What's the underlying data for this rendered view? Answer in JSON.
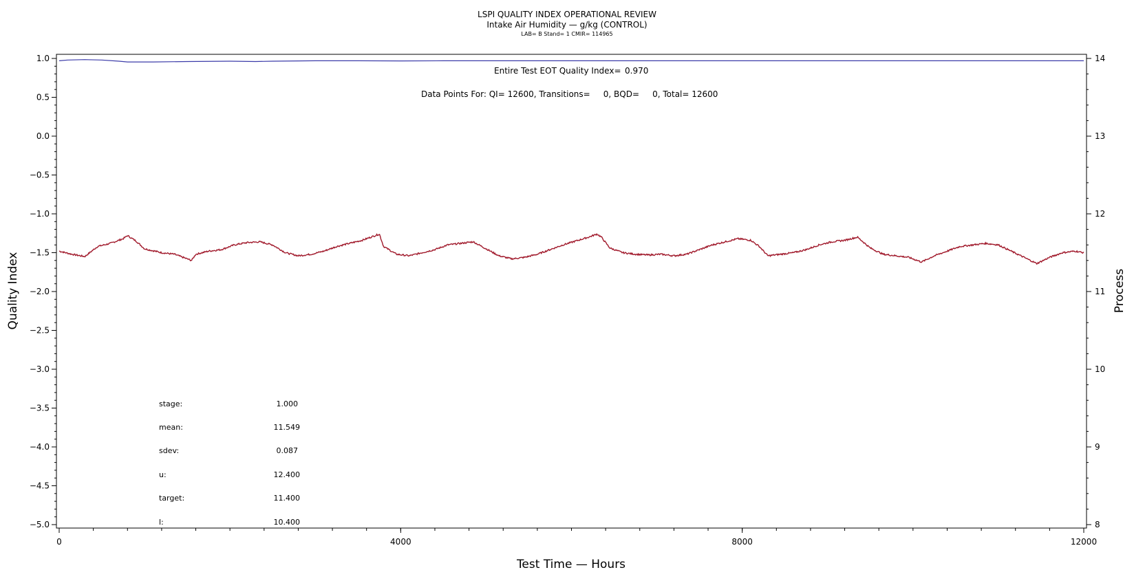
{
  "header": {
    "title": "LSPI QUALITY INDEX OPERATIONAL REVIEW",
    "subtitle": "Intake Air Humidity — g/kg (CONTROL)",
    "caption": "LAB= B Stand= 1 CMIR= 114965"
  },
  "annotations": {
    "eot_label": "Entire Test EOT Quality Index=",
    "eot_value": "0.970",
    "points_line": "Data Points For: QI= 12600, Transitions=     0, BQD=     0, Total= 12600"
  },
  "stats": [
    {
      "label": "stage:",
      "value": "1.000"
    },
    {
      "label": "mean:",
      "value": "11.549"
    },
    {
      "label": "sdev:",
      "value": "0.087"
    },
    {
      "label": "u:",
      "value": "12.400"
    },
    {
      "label": "target:",
      "value": "11.400"
    },
    {
      "label": "l:",
      "value": "10.400"
    }
  ],
  "chart_data": {
    "type": "line",
    "xlabel": "Test Time — Hours",
    "ylabel_left": "Quality Index",
    "ylabel_right": "Process",
    "xlim": [
      0,
      12000
    ],
    "ylim_left": [
      -5.0,
      1.0
    ],
    "ylim_right": [
      8,
      14
    ],
    "x_ticks": [
      "0",
      "4000",
      "8000",
      "12000"
    ],
    "y_left_ticks": [
      "1.0",
      "0.5",
      "0.0",
      "−0.5",
      "−1.0",
      "−1.5",
      "−2.0",
      "−2.5",
      "−3.0",
      "−3.5",
      "−4.0",
      "−4.5",
      "−5.0"
    ],
    "y_right_ticks": [
      "14",
      "13",
      "12",
      "11",
      "10",
      "9",
      "8"
    ],
    "colors": {
      "quality_index": "#3a3aa8",
      "process": "#a0182a"
    },
    "series": [
      {
        "axis": "left",
        "x": [
          0,
          100,
          300,
          500,
          700,
          800,
          1100,
          1500,
          2000,
          2300,
          2500,
          3000,
          3500,
          4000,
          4500,
          5000,
          6000,
          8000,
          10000,
          12000
        ],
        "y": [
          0.97,
          0.98,
          0.985,
          0.98,
          0.965,
          0.955,
          0.955,
          0.96,
          0.965,
          0.96,
          0.965,
          0.97,
          0.97,
          0.968,
          0.97,
          0.97,
          0.97,
          0.97,
          0.97,
          0.97
        ]
      },
      {
        "axis": "right",
        "x": [
          0,
          150,
          300,
          450,
          600,
          750,
          800,
          900,
          1000,
          1200,
          1350,
          1500,
          1550,
          1600,
          1750,
          1900,
          2050,
          2200,
          2350,
          2500,
          2650,
          2800,
          2950,
          3100,
          3250,
          3400,
          3550,
          3700,
          3750,
          3800,
          3950,
          4100,
          4250,
          4400,
          4550,
          4700,
          4850,
          5000,
          5150,
          5300,
          5450,
          5600,
          5750,
          5900,
          6050,
          6200,
          6300,
          6350,
          6450,
          6600,
          6750,
          6900,
          7050,
          7200,
          7350,
          7500,
          7650,
          7800,
          7950,
          8100,
          8200,
          8300,
          8450,
          8600,
          8750,
          8900,
          9050,
          9200,
          9350,
          9500,
          9650,
          9800,
          9950,
          10100,
          10250,
          10400,
          10550,
          10700,
          10850,
          11000,
          11150,
          11300,
          11450,
          11600,
          11750,
          11900,
          12000
        ],
        "y": [
          11.52,
          11.48,
          11.45,
          11.58,
          11.62,
          11.68,
          11.72,
          11.65,
          11.55,
          11.5,
          11.48,
          11.42,
          11.4,
          11.48,
          11.52,
          11.54,
          11.6,
          11.63,
          11.64,
          11.6,
          11.5,
          11.46,
          11.48,
          11.52,
          11.58,
          11.62,
          11.66,
          11.72,
          11.74,
          11.58,
          11.48,
          11.46,
          11.5,
          11.54,
          11.6,
          11.62,
          11.64,
          11.55,
          11.46,
          11.42,
          11.44,
          11.48,
          11.54,
          11.6,
          11.65,
          11.7,
          11.74,
          11.7,
          11.56,
          11.5,
          11.48,
          11.47,
          11.48,
          11.46,
          11.48,
          11.54,
          11.6,
          11.64,
          11.68,
          11.66,
          11.58,
          11.46,
          11.48,
          11.5,
          11.54,
          11.6,
          11.64,
          11.66,
          11.7,
          11.56,
          11.48,
          11.46,
          11.44,
          11.38,
          11.46,
          11.52,
          11.58,
          11.6,
          11.62,
          11.6,
          11.52,
          11.44,
          11.36,
          11.44,
          11.5,
          11.52,
          11.5
        ]
      }
    ]
  }
}
